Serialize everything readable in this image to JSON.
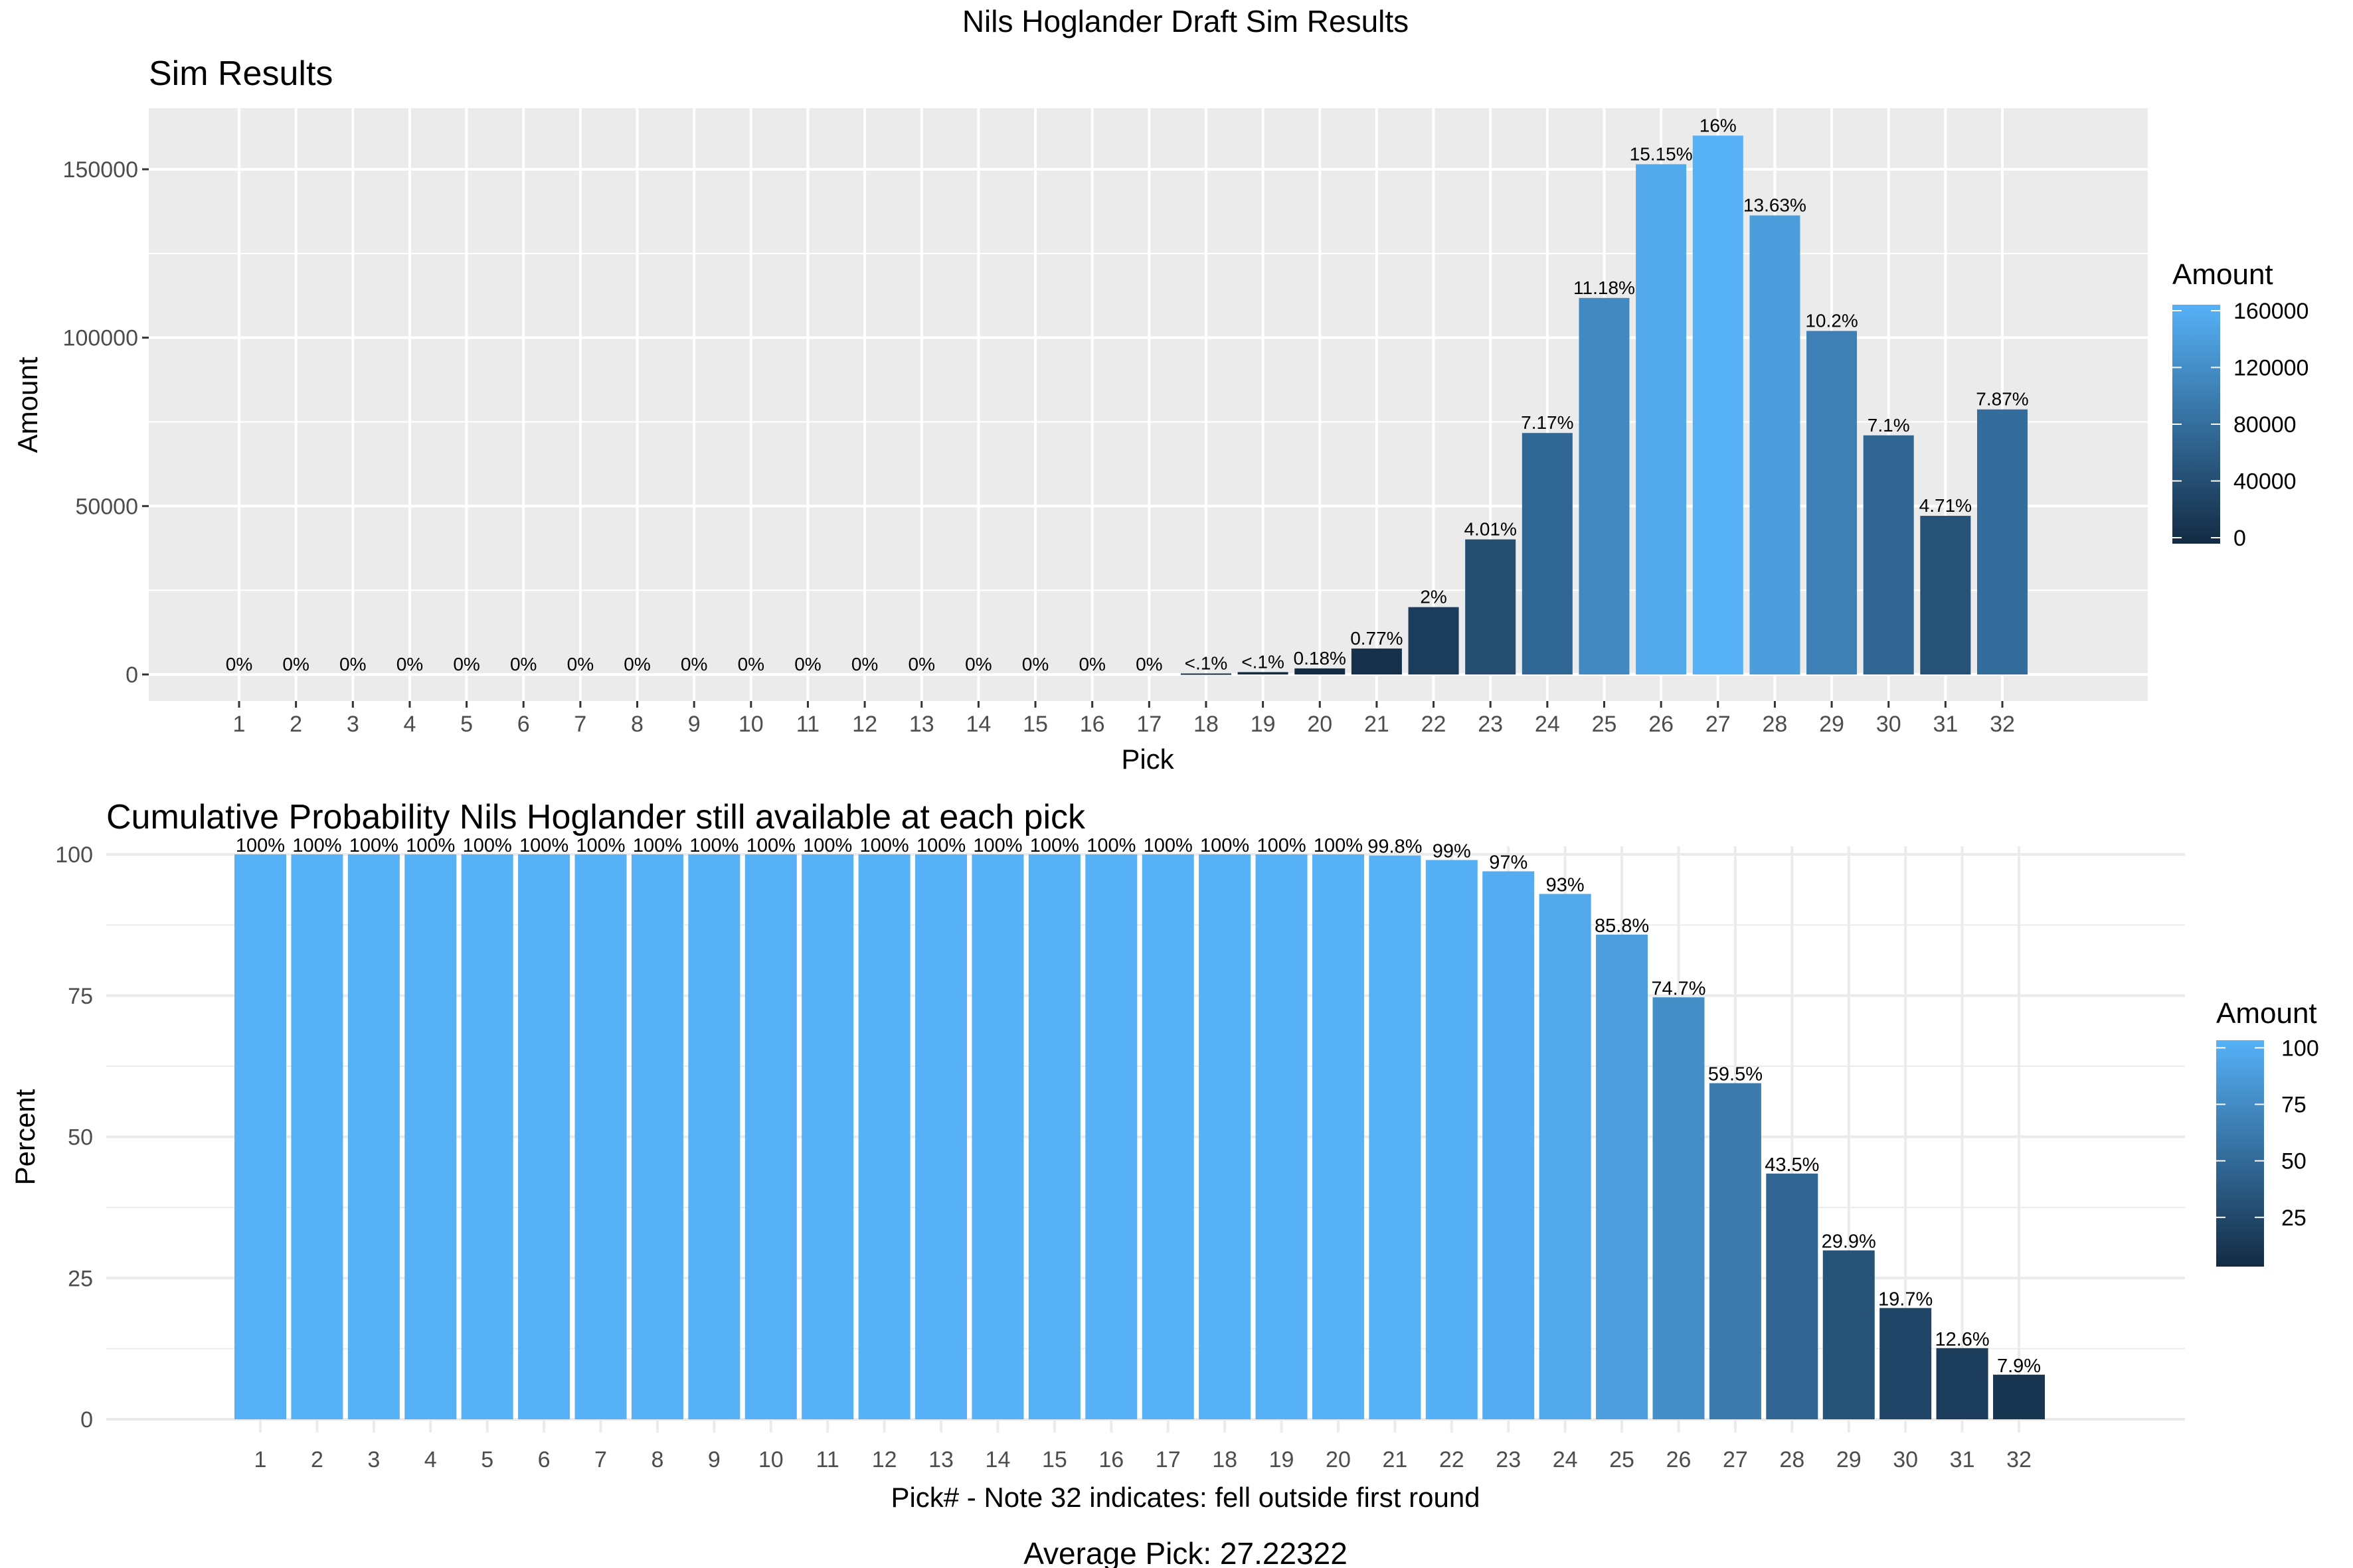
{
  "figure_title": "Nils Hoglander Draft Sim Results",
  "caption": "Average Pick: 27.22322",
  "colors": {
    "low": "#132B43",
    "high": "#56B1F7",
    "panel_top": "#EBEBEB",
    "grid_top": "#FFFFFF",
    "grid_bottom": "#EBEBEB"
  },
  "chart_data": [
    {
      "type": "bar",
      "title": "Sim Results",
      "xlabel": "Pick",
      "ylabel": "Amount",
      "ylim": [
        -5000,
        168000
      ],
      "yticks": [
        0,
        50000,
        100000,
        150000
      ],
      "ytick_labels": [
        "0",
        "50000",
        "100000",
        "150000"
      ],
      "categories": [
        "1",
        "2",
        "3",
        "4",
        "5",
        "6",
        "7",
        "8",
        "9",
        "10",
        "11",
        "12",
        "13",
        "14",
        "15",
        "16",
        "17",
        "18",
        "19",
        "20",
        "21",
        "22",
        "23",
        "24",
        "25",
        "26",
        "27",
        "28",
        "29",
        "30",
        "31",
        "32"
      ],
      "values": [
        0,
        0,
        0,
        0,
        0,
        0,
        0,
        0,
        0,
        0,
        0,
        0,
        0,
        0,
        0,
        0,
        0,
        300,
        700,
        1800,
        7700,
        20000,
        40100,
        71700,
        111800,
        151500,
        160000,
        136300,
        102000,
        71000,
        47100,
        78700
      ],
      "labels": [
        "0%",
        "0%",
        "0%",
        "0%",
        "0%",
        "0%",
        "0%",
        "0%",
        "0%",
        "0%",
        "0%",
        "0%",
        "0%",
        "0%",
        "0%",
        "0%",
        "0%",
        "<.1%",
        "<.1%",
        "0.18%",
        "0.77%",
        "2%",
        "4.01%",
        "7.17%",
        "11.18%",
        "15.15%",
        "16%",
        "13.63%",
        "10.2%",
        "7.1%",
        "4.71%",
        "7.87%"
      ],
      "legend": {
        "title": "Amount",
        "min": 0,
        "max": 160000,
        "ticks": [
          "0",
          "40000",
          "80000",
          "120000",
          "160000"
        ],
        "position": "right"
      },
      "grid": true
    },
    {
      "type": "bar",
      "title": "Cumulative Probability Nils Hoglander still available at each pick",
      "xlabel": "Pick# - Note 32 indicates: fell outside first round",
      "ylabel": "Percent",
      "ylim": [
        0,
        100
      ],
      "yticks": [
        0,
        25,
        50,
        75,
        100
      ],
      "ytick_labels": [
        "0",
        "25",
        "50",
        "75",
        "100"
      ],
      "categories": [
        "1",
        "2",
        "3",
        "4",
        "5",
        "6",
        "7",
        "8",
        "9",
        "10",
        "11",
        "12",
        "13",
        "14",
        "15",
        "16",
        "17",
        "18",
        "19",
        "20",
        "21",
        "22",
        "23",
        "24",
        "25",
        "26",
        "27",
        "28",
        "29",
        "30",
        "31",
        "32"
      ],
      "values": [
        100,
        100,
        100,
        100,
        100,
        100,
        100,
        100,
        100,
        100,
        100,
        100,
        100,
        100,
        100,
        100,
        100,
        100,
        100,
        100,
        99.8,
        99,
        97,
        93,
        85.8,
        74.7,
        59.5,
        43.5,
        29.9,
        19.7,
        12.6,
        7.9
      ],
      "labels": [
        "100%",
        "100%",
        "100%",
        "100%",
        "100%",
        "100%",
        "100%",
        "100%",
        "100%",
        "100%",
        "100%",
        "100%",
        "100%",
        "100%",
        "100%",
        "100%",
        "100%",
        "100%",
        "100%",
        "100%",
        "99.8%",
        "99%",
        "97%",
        "93%",
        "85.8%",
        "74.7%",
        "59.5%",
        "43.5%",
        "29.9%",
        "19.7%",
        "12.6%",
        "7.9%"
      ],
      "legend": {
        "title": "Amount",
        "min": 0,
        "max": 100,
        "ticks": [
          "25",
          "50",
          "75",
          "100"
        ],
        "position": "right"
      },
      "grid": true
    }
  ]
}
